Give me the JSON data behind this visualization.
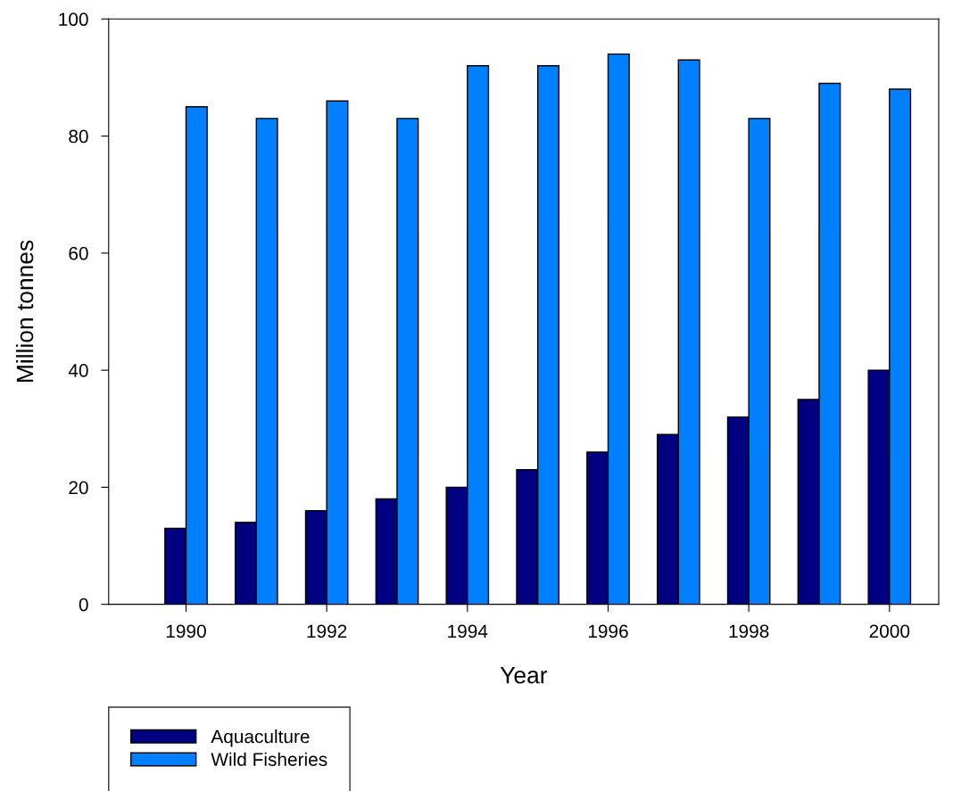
{
  "chart_data": {
    "type": "bar",
    "xlabel": "Year",
    "ylabel": "Million tonnes",
    "x": [
      1990,
      1991,
      1992,
      1993,
      1994,
      1995,
      1996,
      1997,
      1998,
      1999,
      2000
    ],
    "series": [
      {
        "name": "Aquaculture",
        "color": "#000080",
        "values": [
          13,
          14,
          16,
          18,
          20,
          23,
          26,
          29,
          32,
          35,
          40
        ]
      },
      {
        "name": "Wild Fisheries",
        "color": "#0080ff",
        "values": [
          85,
          83,
          86,
          83,
          92,
          92,
          94,
          93,
          83,
          89,
          88
        ]
      }
    ],
    "xlim": [
      1988.9,
      2000.7
    ],
    "xticks": [
      1990,
      1992,
      1994,
      1996,
      1998,
      2000
    ],
    "ylim": [
      0,
      100
    ],
    "yticks": [
      0,
      20,
      40,
      60,
      80,
      100
    ],
    "grid": false,
    "legend": "bottom left"
  }
}
